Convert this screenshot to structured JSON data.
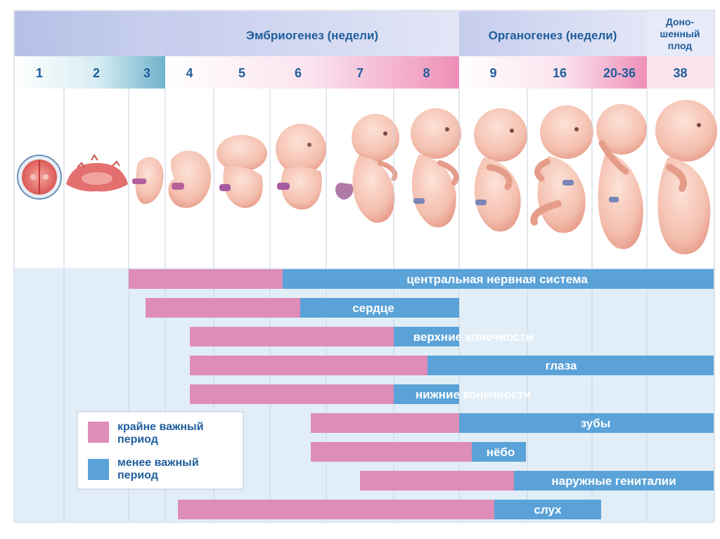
{
  "header": {
    "embryo_label": "Эмбриогенез (недели)",
    "organo_label": "Органогенез (недели)",
    "term_label_lines": [
      "Доно-",
      "шенный",
      "плод"
    ]
  },
  "weeks": [
    "1",
    "2",
    "3",
    "4",
    "5",
    "6",
    "7",
    "8",
    "9",
    "16",
    "20-36",
    "38"
  ],
  "colors": {
    "critical": "#dd8db7",
    "less_critical": "#5aa2d8",
    "bar_text": "#ffffff",
    "header_text": "#1f5e9c",
    "grid_bg": "#e2eef7",
    "grid_line": "#ffffff"
  },
  "periods": [
    {
      "organ": "центральная нервная система",
      "critical": {
        "from": "3",
        "to": "6"
      },
      "less_critical": {
        "from": "6",
        "to": "38"
      }
    },
    {
      "organ": "сердце",
      "critical": {
        "from": "3",
        "to": "6"
      },
      "less_critical": {
        "from": "6",
        "to": "8"
      }
    },
    {
      "organ": "верхние конечности",
      "critical": {
        "from": "4",
        "to": "8"
      },
      "less_critical": {
        "from": "8",
        "to": "8"
      }
    },
    {
      "organ": "глаза",
      "critical": {
        "from": "4",
        "to": "8"
      },
      "less_critical": {
        "from": "8",
        "to": "38"
      }
    },
    {
      "organ": "нижние конечности",
      "critical": {
        "from": "4",
        "to": "8"
      },
      "less_critical": {
        "from": "8",
        "to": "8"
      }
    },
    {
      "organ": "зубы",
      "critical": {
        "from": "7",
        "to": "8"
      },
      "less_critical": {
        "from": "9",
        "to": "38"
      }
    },
    {
      "organ": "нёбо",
      "critical": {
        "from": "7",
        "to": "9"
      },
      "less_critical": {
        "from": "9",
        "to": "16"
      }
    },
    {
      "organ": "наружные гениталии",
      "critical": {
        "from": "7",
        "to": "16"
      },
      "less_critical": {
        "from": "16",
        "to": "38"
      }
    },
    {
      "organ": "слух",
      "critical": {
        "from": "4",
        "to": "9"
      },
      "less_critical": {
        "from": "9",
        "to": "20-36"
      }
    }
  ],
  "legend": {
    "critical_label_lines": [
      "крайне важный",
      "период"
    ],
    "less_critical_label_lines": [
      "менее важный",
      "период"
    ]
  },
  "illustrations": [
    "zygote-icon",
    "embryonic-disc-icon",
    "embryo-week3-icon",
    "embryo-week4-icon",
    "embryo-week5-icon",
    "embryo-week6-icon",
    "embryo-week7-icon",
    "embryo-week8-icon",
    "fetus-week9-icon",
    "fetus-week16-icon",
    "fetus-week20-36-icon",
    "fetus-week38-icon"
  ]
}
